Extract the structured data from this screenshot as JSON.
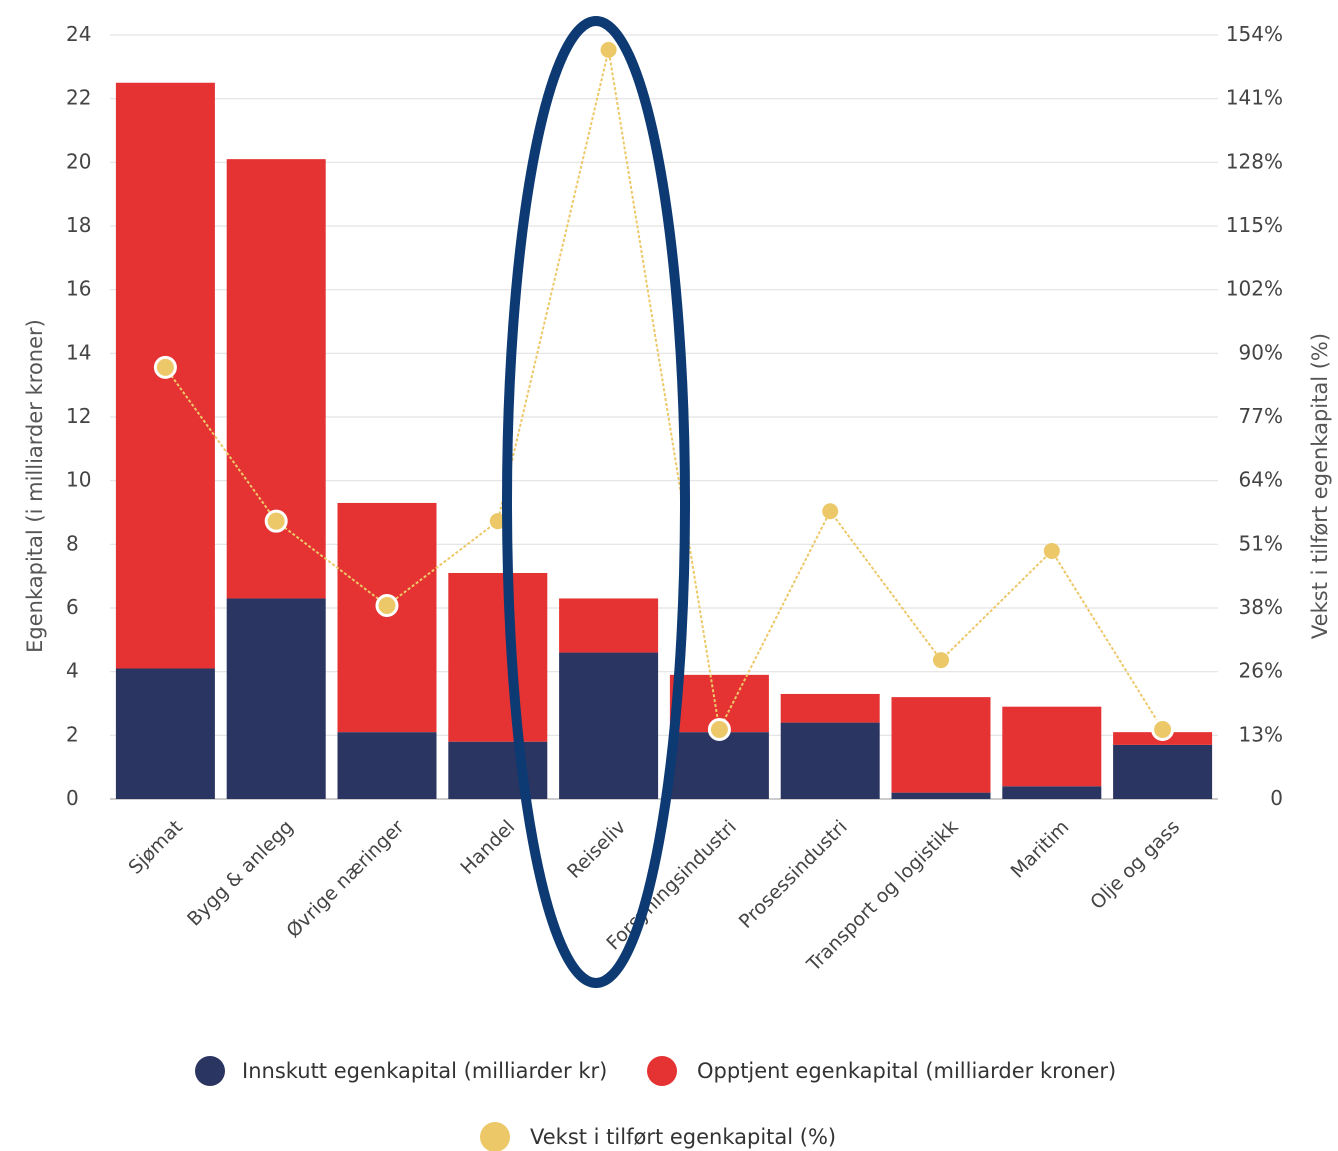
{
  "chart_data": {
    "type": "bar",
    "stacked": true,
    "categories": [
      "Sjømat",
      "Bygg & anlegg",
      "Øvrige næringer",
      "Handel",
      "Reiseliv",
      "Forsyningsindustri",
      "Prosessindustri",
      "Transport og logistikk",
      "Maritim",
      "Olje og gass"
    ],
    "series": [
      {
        "name": "Innskutt egenkapital (milliarder kr)",
        "type": "bar",
        "axis": "left",
        "color": "#2b3561",
        "values": [
          4.1,
          6.3,
          2.1,
          1.8,
          4.6,
          2.1,
          2.4,
          0.2,
          0.4,
          1.7
        ]
      },
      {
        "name": "Opptjent egenkapital (milliarder kroner)",
        "type": "bar",
        "axis": "left",
        "color": "#e53232",
        "values": [
          18.4,
          13.8,
          7.2,
          5.3,
          1.7,
          1.8,
          0.9,
          3.0,
          2.5,
          0.4
        ]
      },
      {
        "name": "Vekst i tilført egenkapital (%)",
        "type": "line",
        "axis": "right",
        "color": "#ecc868",
        "values": [
          87,
          56,
          39,
          56,
          151,
          14,
          58,
          28,
          50,
          14
        ]
      }
    ],
    "ylabel": "Egenkapital (i milliarder kroner)",
    "ylabel_right": "Vekst i tilført egenkapital (%)",
    "ylim": [
      0,
      24
    ],
    "yticks": [
      "0",
      "2",
      "4",
      "6",
      "8",
      "10",
      "12",
      "14",
      "16",
      "18",
      "20",
      "22",
      "24"
    ],
    "ylim_right": [
      0,
      154
    ],
    "yticks_right": [
      "0",
      "13%",
      "26%",
      "38%",
      "51%",
      "64%",
      "77%",
      "90%",
      "102%",
      "115%",
      "128%",
      "141%",
      "154%"
    ],
    "grid": true,
    "legend_position": "bottom",
    "highlight": {
      "category": "Reiseliv",
      "shape": "ellipse",
      "color": "#0d3a73"
    }
  }
}
